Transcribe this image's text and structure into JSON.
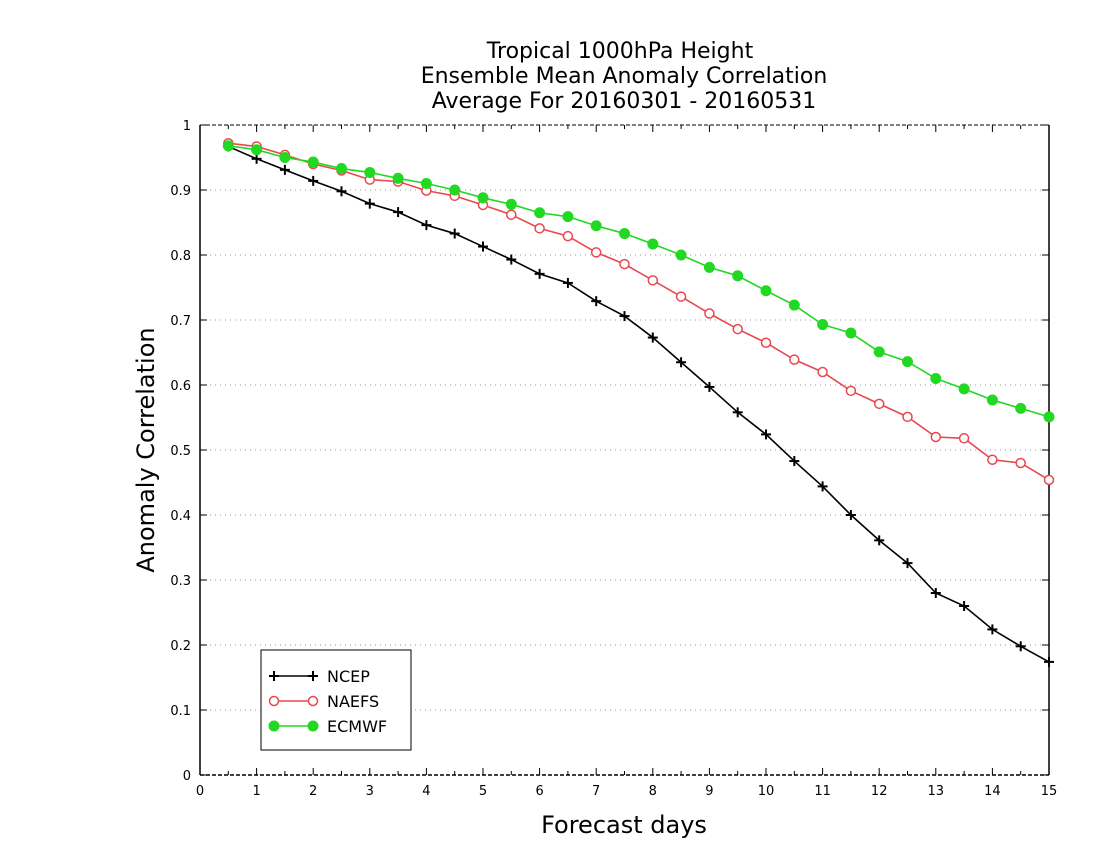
{
  "chart_data": {
    "type": "line",
    "title": [
      "Tropical 1000hPa Height",
      "Ensemble Mean Anomaly Correlation",
      "Average For 20160301 - 20160531"
    ],
    "xlabel": "Forecast days",
    "ylabel": "Anomaly Correlation",
    "xlim": [
      0,
      15
    ],
    "ylim": [
      0,
      1
    ],
    "x_ticks": [
      "0",
      "1",
      "2",
      "3",
      "4",
      "5",
      "6",
      "7",
      "8",
      "9",
      "10",
      "11",
      "12",
      "13",
      "14",
      "15"
    ],
    "y_ticks": [
      "0",
      "0.1",
      "0.2",
      "0.3",
      "0.4",
      "0.5",
      "0.6",
      "0.7",
      "0.8",
      "0.9",
      "1"
    ],
    "grid": "horizontal-dotted",
    "legend_position": "bottom-left",
    "x": [
      0.5,
      1,
      1.5,
      2,
      2.5,
      3,
      3.5,
      4,
      4.5,
      5,
      5.5,
      6,
      6.5,
      7,
      7.5,
      8,
      8.5,
      9,
      9.5,
      10,
      10.5,
      11,
      11.5,
      12,
      12.5,
      13,
      13.5,
      14,
      14.5,
      15
    ],
    "series": [
      {
        "name": "NCEP",
        "color": "#000000",
        "marker": "plus",
        "values": [
          0.967,
          0.948,
          0.931,
          0.914,
          0.898,
          0.879,
          0.866,
          0.846,
          0.833,
          0.813,
          0.793,
          0.771,
          0.757,
          0.729,
          0.706,
          0.673,
          0.635,
          0.597,
          0.558,
          0.524,
          0.483,
          0.444,
          0.4,
          0.361,
          0.326,
          0.28,
          0.26,
          0.224,
          0.198,
          0.174
        ]
      },
      {
        "name": "NAEFS",
        "color": "#e8484e",
        "marker": "open-circle",
        "values": [
          0.972,
          0.967,
          0.954,
          0.94,
          0.93,
          0.916,
          0.913,
          0.899,
          0.891,
          0.877,
          0.862,
          0.841,
          0.829,
          0.804,
          0.786,
          0.761,
          0.736,
          0.71,
          0.686,
          0.665,
          0.639,
          0.62,
          0.591,
          0.571,
          0.551,
          0.52,
          0.518,
          0.485,
          0.48,
          0.454
        ]
      },
      {
        "name": "ECMWF",
        "color": "#22d822",
        "marker": "filled-circle",
        "values": [
          0.968,
          0.962,
          0.95,
          0.943,
          0.933,
          0.927,
          0.918,
          0.91,
          0.9,
          0.888,
          0.878,
          0.865,
          0.859,
          0.845,
          0.833,
          0.817,
          0.8,
          0.781,
          0.768,
          0.745,
          0.723,
          0.693,
          0.68,
          0.651,
          0.636,
          0.61,
          0.594,
          0.577,
          0.564,
          0.551
        ]
      }
    ]
  }
}
